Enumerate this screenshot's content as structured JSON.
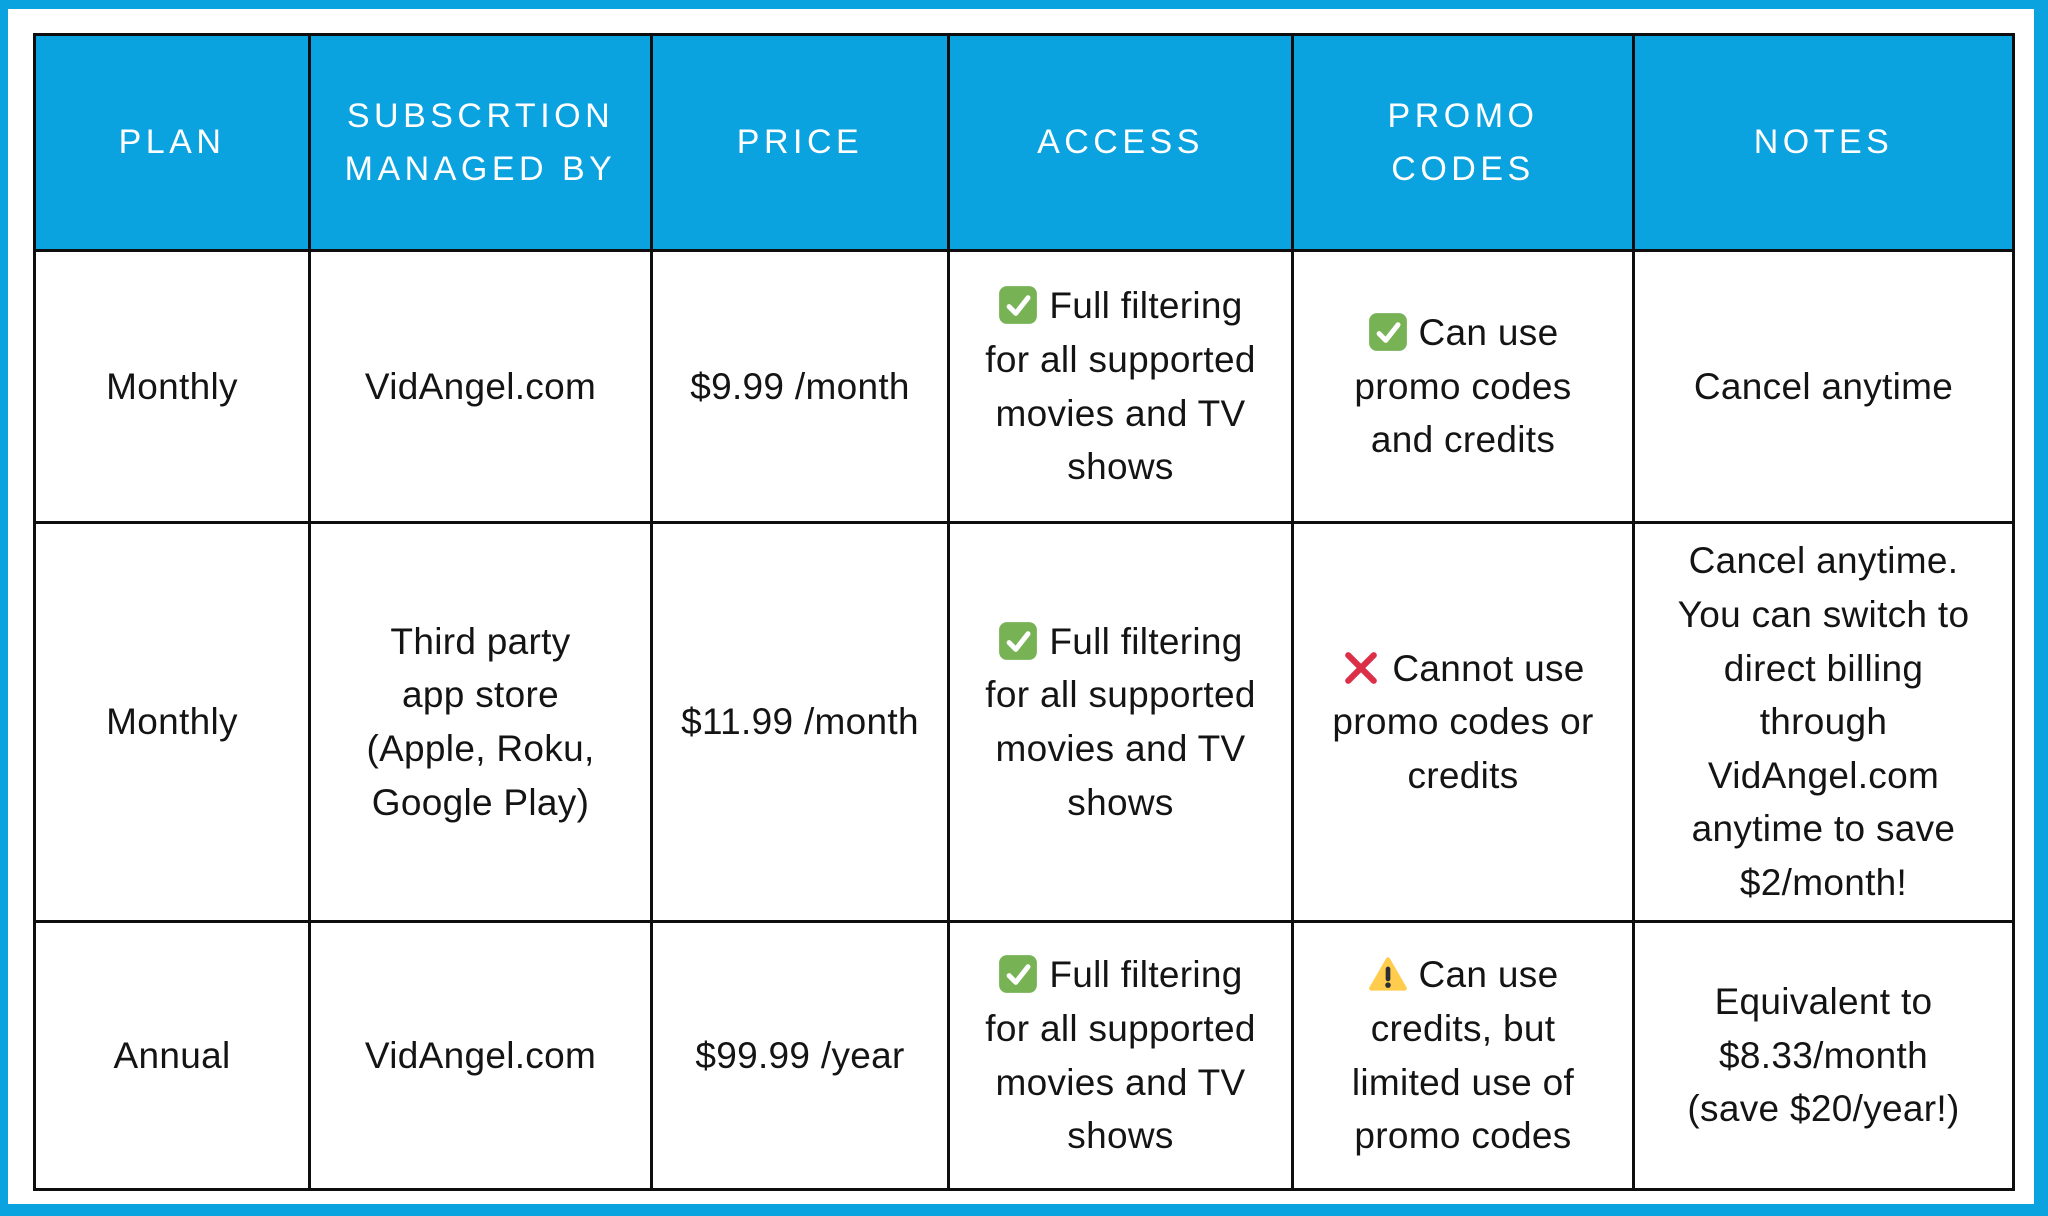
{
  "colors": {
    "accent": "#0aa2df",
    "positive": "#77B255",
    "negative": "#DC3048",
    "caution": "#FFCC4D",
    "grid_line": "#0e0e0e",
    "header_text": "#ffffff",
    "body_text": "#141414"
  },
  "table": {
    "columns": [
      {
        "id": "plan",
        "label": "PLAN"
      },
      {
        "id": "managed",
        "label": "SUBSCRTION\nMANAGED BY"
      },
      {
        "id": "price",
        "label": "PRICE"
      },
      {
        "id": "access",
        "label": "ACCESS"
      },
      {
        "id": "promo",
        "label": "PROMO\nCODES"
      },
      {
        "id": "notes",
        "label": "NOTES"
      }
    ],
    "rows": [
      {
        "plan": "Monthly",
        "managed": "VidAngel.com",
        "price": "$9.99 /month",
        "access": {
          "icon": "check",
          "text": "Full filtering\nfor all supported\nmovies and TV\nshows"
        },
        "promo": {
          "icon": "check",
          "text": "Can use\npromo codes\nand credits"
        },
        "notes": "Cancel anytime"
      },
      {
        "plan": "Monthly",
        "managed": "Third party\napp store\n(Apple, Roku,\nGoogle Play)",
        "price": "$11.99 /month",
        "access": {
          "icon": "check",
          "text": "Full filtering\nfor all supported\nmovies and TV\nshows"
        },
        "promo": {
          "icon": "cross",
          "text": "Cannot use\npromo codes or\ncredits"
        },
        "notes": "Cancel anytime.\nYou can switch to\ndirect billing\nthrough\nVidAngel.com\nanytime to save\n$2/month!"
      },
      {
        "plan": "Annual",
        "managed": "VidAngel.com",
        "price": "$99.99 /year",
        "access": {
          "icon": "check",
          "text": "Full filtering\nfor all supported\nmovies and TV\nshows"
        },
        "promo": {
          "icon": "warning",
          "text": "Can use\ncredits, but\nlimited use of\npromo codes"
        },
        "notes": "Equivalent to\n$8.33/month\n(save $20/year!)"
      }
    ]
  }
}
